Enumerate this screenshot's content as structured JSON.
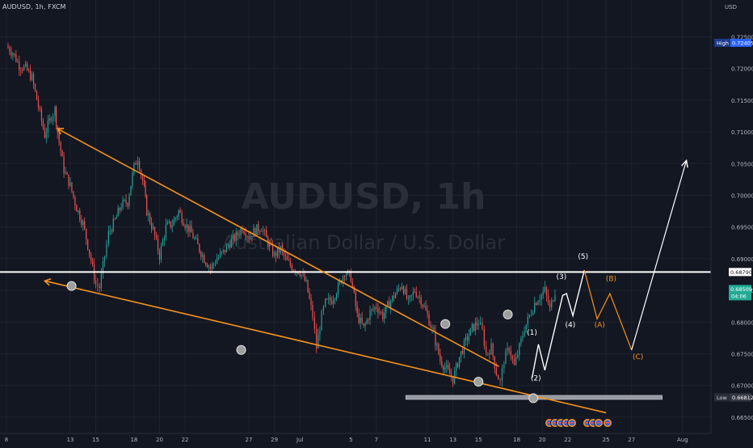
{
  "header": {
    "symbol_line": "AUDUSD, 1h, FXCM"
  },
  "currency_label": "USD",
  "watermark": {
    "symbol": "AUDUSD, 1h",
    "name": "Australian Dollar / U.S. Dollar"
  },
  "colors": {
    "background": "#131722",
    "grid": "#1e222d",
    "up": "#26a69a",
    "down": "#ef5350",
    "trendline": "#f7931a",
    "white": "#ffffff",
    "green_badge": "#22ab94",
    "blue_badge": "#2962ff"
  },
  "price_badges": {
    "high": {
      "label": "High",
      "value": "0.72405"
    },
    "low": {
      "label": "Low",
      "value": "0.66812"
    },
    "hline": {
      "value": "0.68790"
    },
    "last": {
      "value": "0.68509",
      "countdown": "04:06"
    }
  },
  "chart_data": {
    "type": "line",
    "title": "AUDUSD, 1h",
    "subtitle": "Australian Dollar / U.S. Dollar",
    "ylim": [
      0.664,
      0.728
    ],
    "y_ticks": [
      "0.72500",
      "0.72000",
      "0.71500",
      "0.71000",
      "0.70500",
      "0.70000",
      "0.69500",
      "0.69000",
      "0.68500",
      "0.68000",
      "0.67500",
      "0.67000",
      "0.66500"
    ],
    "x_ticks": [
      {
        "label": "8",
        "day": 0
      },
      {
        "label": "13",
        "day": 5
      },
      {
        "label": "15",
        "day": 7
      },
      {
        "label": "18",
        "day": 10
      },
      {
        "label": "20",
        "day": 12
      },
      {
        "label": "22",
        "day": 14
      },
      {
        "label": "27",
        "day": 19
      },
      {
        "label": "29",
        "day": 21
      },
      {
        "label": "Jul",
        "day": 23
      },
      {
        "label": "5",
        "day": 27
      },
      {
        "label": "7",
        "day": 29
      },
      {
        "label": "11",
        "day": 33
      },
      {
        "label": "13",
        "day": 35
      },
      {
        "label": "15",
        "day": 37
      },
      {
        "label": "18",
        "day": 40
      },
      {
        "label": "20",
        "day": 42
      },
      {
        "label": "22",
        "day": 44
      },
      {
        "label": "25",
        "day": 47
      },
      {
        "label": "27",
        "day": 49
      },
      {
        "label": "Aug",
        "day": 53
      }
    ],
    "series": [
      {
        "values_note": "",
        "points": [
          [
            0,
            0.7235
          ],
          [
            0.5,
            0.7225
          ],
          [
            1,
            0.7205
          ],
          [
            1.5,
            0.72
          ],
          [
            2,
            0.7185
          ],
          [
            2.5,
            0.714
          ],
          [
            3,
            0.7095
          ],
          [
            3.5,
            0.7125
          ],
          [
            3.8,
            0.7135
          ],
          [
            4,
            0.71
          ],
          [
            4.5,
            0.704
          ],
          [
            5,
            0.7015
          ],
          [
            5.5,
            0.698
          ],
          [
            6,
            0.6955
          ],
          [
            6.5,
            0.691
          ],
          [
            7,
            0.686
          ],
          [
            7.3,
            0.6855
          ],
          [
            7.7,
            0.6905
          ],
          [
            8,
            0.694
          ],
          [
            8.5,
            0.696
          ],
          [
            9,
            0.6985
          ],
          [
            9.5,
            0.699
          ],
          [
            10,
            0.7045
          ],
          [
            10.3,
            0.706
          ],
          [
            10.8,
            0.701
          ],
          [
            11,
            0.6975
          ],
          [
            11.5,
            0.6945
          ],
          [
            12,
            0.6905
          ],
          [
            12.5,
            0.695
          ],
          [
            13,
            0.6955
          ],
          [
            13.5,
            0.6975
          ],
          [
            14,
            0.6955
          ],
          [
            14.5,
            0.694
          ],
          [
            15,
            0.692
          ],
          [
            15.5,
            0.69
          ],
          [
            16,
            0.6885
          ],
          [
            16.5,
            0.69
          ],
          [
            17,
            0.691
          ],
          [
            17.5,
            0.6925
          ],
          [
            18,
            0.6935
          ],
          [
            18.5,
            0.695
          ],
          [
            19,
            0.6935
          ],
          [
            19.5,
            0.6945
          ],
          [
            20,
            0.695
          ],
          [
            20.5,
            0.6925
          ],
          [
            21,
            0.6905
          ],
          [
            21.5,
            0.6915
          ],
          [
            22,
            0.6895
          ],
          [
            22.5,
            0.6885
          ],
          [
            23,
            0.688
          ],
          [
            23.5,
            0.686
          ],
          [
            24,
            0.681
          ],
          [
            24.3,
            0.676
          ],
          [
            24.7,
            0.681
          ],
          [
            25,
            0.683
          ],
          [
            25.5,
            0.6835
          ],
          [
            26,
            0.6855
          ],
          [
            26.5,
            0.688
          ],
          [
            27,
            0.687
          ],
          [
            27.5,
            0.681
          ],
          [
            28,
            0.679
          ],
          [
            28.5,
            0.6815
          ],
          [
            29,
            0.6825
          ],
          [
            29.5,
            0.681
          ],
          [
            30,
            0.683
          ],
          [
            30.5,
            0.6845
          ],
          [
            31,
            0.686
          ],
          [
            31.5,
            0.683
          ],
          [
            32,
            0.685
          ],
          [
            32.5,
            0.6835
          ],
          [
            33,
            0.681
          ],
          [
            33.5,
            0.678
          ],
          [
            34,
            0.674
          ],
          [
            34.5,
            0.6725
          ],
          [
            35,
            0.671
          ],
          [
            35.5,
            0.6745
          ],
          [
            36,
            0.677
          ],
          [
            36.5,
            0.679
          ],
          [
            37,
            0.68
          ],
          [
            37.3,
            0.6785
          ],
          [
            37.6,
            0.675
          ],
          [
            38,
            0.676
          ],
          [
            38.4,
            0.672
          ],
          [
            38.7,
            0.6705
          ],
          [
            39,
            0.674
          ],
          [
            39.4,
            0.676
          ],
          [
            39.8,
            0.673
          ],
          [
            40.2,
            0.676
          ],
          [
            40.6,
            0.679
          ],
          [
            41,
            0.681
          ],
          [
            41.4,
            0.683
          ],
          [
            41.8,
            0.684
          ],
          [
            42.2,
            0.685
          ],
          [
            42.6,
            0.682
          ],
          [
            43,
            0.685
          ]
        ]
      }
    ],
    "upper_trendline": [
      [
        4,
        0.7105
      ],
      [
        38.6,
        0.673
      ]
    ],
    "lower_trendline": [
      [
        3,
        0.6865
      ],
      [
        47,
        0.6657
      ]
    ],
    "horizontal_line": 0.6879,
    "support_band": 0.66812,
    "pivot_circles": [
      [
        5.1,
        0.6857
      ],
      [
        18.4,
        0.6756
      ],
      [
        34.4,
        0.6797
      ],
      [
        37,
        0.6706
      ],
      [
        39.3,
        0.6812
      ],
      [
        41.3,
        0.668
      ]
    ],
    "wave_path_white": [
      [
        41.2,
        0.6712
      ],
      [
        41.7,
        0.6765
      ],
      [
        42.2,
        0.6724
      ],
      [
        43.6,
        0.6842
      ],
      [
        43.9,
        0.6845
      ],
      [
        44.4,
        0.681
      ],
      [
        45.3,
        0.6882
      ]
    ],
    "wave_path_orange": [
      [
        45.3,
        0.6882
      ],
      [
        46.3,
        0.6805
      ],
      [
        47.3,
        0.6845
      ],
      [
        49,
        0.6756
      ]
    ],
    "wave_path_breakout": [
      [
        49,
        0.6756
      ],
      [
        53.3,
        0.7055
      ]
    ],
    "wave_labels": [
      {
        "text": "(1)",
        "x": 41.2,
        "y": 0.678,
        "color": "white"
      },
      {
        "text": "(2)",
        "x": 41.5,
        "y": 0.6708,
        "color": "white"
      },
      {
        "text": "(3)",
        "x": 43.5,
        "y": 0.6868,
        "color": "white"
      },
      {
        "text": "(4)",
        "x": 44.2,
        "y": 0.6792,
        "color": "white"
      },
      {
        "text": "(5)",
        "x": 45.2,
        "y": 0.69,
        "color": "white"
      },
      {
        "text": "(A)",
        "x": 46.5,
        "y": 0.6792,
        "color": "orange"
      },
      {
        "text": "(B)",
        "x": 47.4,
        "y": 0.6865,
        "color": "orange"
      },
      {
        "text": "(C)",
        "x": 49.5,
        "y": 0.6742,
        "color": "orange"
      }
    ],
    "grid": true
  }
}
